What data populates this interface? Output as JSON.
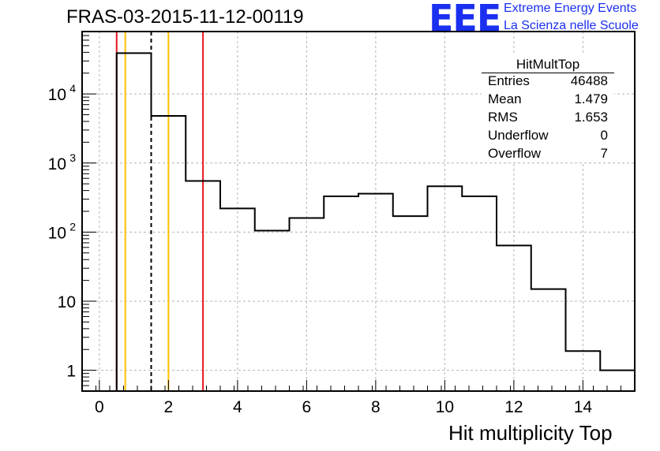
{
  "header": {
    "title": "FRAS-03-2015-11-12-00119",
    "logo_mark": "EEE",
    "logo_line1": "Extreme Energy Events",
    "logo_line2": "La Scienza nelle Scuole"
  },
  "stats_box": {
    "name": "HitMultTop",
    "rows": [
      {
        "key": "Entries",
        "value": "46488"
      },
      {
        "key": "Mean",
        "value": "1.479"
      },
      {
        "key": "RMS",
        "value": "1.653"
      },
      {
        "key": "Underflow",
        "value": "0"
      },
      {
        "key": "Overflow",
        "value": "7"
      }
    ]
  },
  "colors": {
    "histogram": "#000000",
    "grid": "#b4b4b4",
    "red_marker": "#e8141e",
    "orange_marker": "#ffbf00"
  },
  "chart_data": {
    "type": "histogram",
    "title": "FRAS-03-2015-11-12-00119",
    "xlabel": "Hit multiplicity Top",
    "ylabel": "",
    "xlim": [
      -0.5,
      15.5
    ],
    "ylim": [
      0.5,
      80000
    ],
    "log_y": true,
    "grid": true,
    "bin_width": 1,
    "bin_centers": [
      0,
      1,
      2,
      3,
      4,
      5,
      6,
      7,
      8,
      9,
      10,
      11,
      12,
      13,
      14,
      15
    ],
    "values": [
      0,
      39000,
      4800,
      550,
      220,
      105,
      160,
      330,
      360,
      170,
      460,
      330,
      64,
      15,
      1.9,
      1
    ],
    "x_ticks": [
      0,
      2,
      4,
      6,
      8,
      10,
      12,
      14
    ],
    "x_tick_labels": [
      "0",
      "2",
      "4",
      "6",
      "8",
      "10",
      "12",
      "14"
    ],
    "y_ticks": [
      1,
      10,
      100,
      1000,
      10000
    ],
    "y_tick_labels": [
      {
        "base": "1",
        "exp": ""
      },
      {
        "base": "10",
        "exp": ""
      },
      {
        "base": "10",
        "exp": "2"
      },
      {
        "base": "10",
        "exp": "3"
      },
      {
        "base": "10",
        "exp": "4"
      }
    ],
    "markers": [
      {
        "x": 0.5,
        "color": "red",
        "style": "solid"
      },
      {
        "x": 0.75,
        "color": "orange",
        "style": "solid"
      },
      {
        "x": 1.5,
        "color": "black",
        "style": "dashed"
      },
      {
        "x": 2.0,
        "color": "orange",
        "style": "solid"
      },
      {
        "x": 3.0,
        "color": "red",
        "style": "solid"
      }
    ]
  }
}
